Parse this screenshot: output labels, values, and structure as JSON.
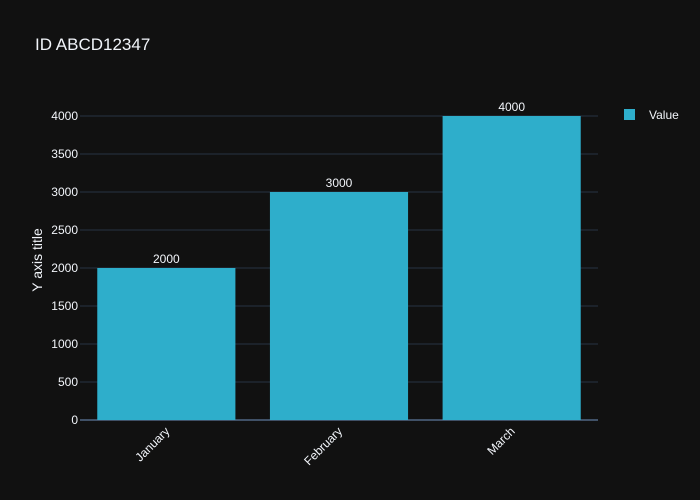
{
  "chart_data": {
    "type": "bar",
    "title": "ID ABCD12347",
    "xlabel": "",
    "ylabel": "Y axis title",
    "categories": [
      "January",
      "February",
      "March"
    ],
    "series": [
      {
        "name": "Value",
        "values": [
          2000,
          3000,
          4000
        ],
        "color": "#2eaecb"
      }
    ],
    "data_labels": [
      "2000",
      "3000",
      "4000"
    ],
    "ylim": [
      0,
      4000
    ],
    "yticks": [
      0,
      500,
      1000,
      1500,
      2000,
      2500,
      3000,
      3500,
      4000
    ],
    "ytick_labels": [
      "0",
      "500",
      "1000",
      "1500",
      "2000",
      "2500",
      "3000",
      "3500",
      "4000"
    ],
    "grid": true,
    "legend_position": "top-right",
    "colors": {
      "background": "#111111",
      "grid": "#283442",
      "text": "#f2f5fa"
    }
  }
}
